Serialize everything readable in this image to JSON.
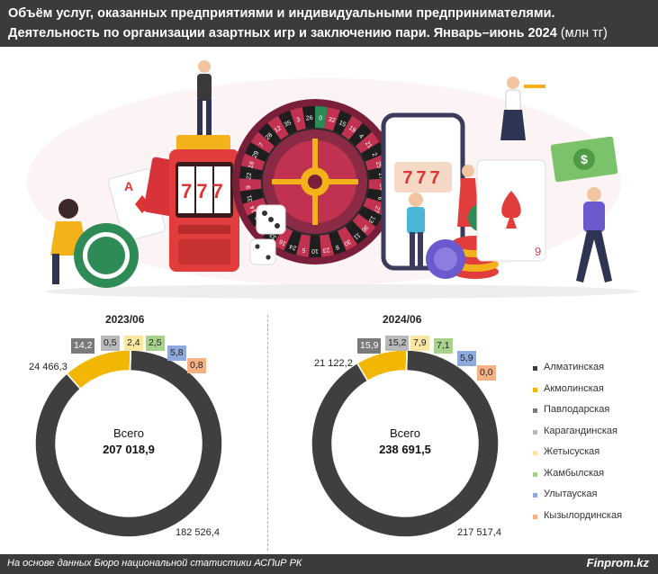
{
  "header": {
    "title_line1": "Объём услуг, оказанных предприятиями и индивидуальными предпринимателями.",
    "title_line2": "Деятельность по организации азартных игр и заключению пари. Январь–июнь 2024",
    "unit": "(млн тг)"
  },
  "illustration": {
    "slot_symbols": "777",
    "phone_symbols": "777",
    "roulette_numbers": [
      "0",
      "32",
      "15",
      "19",
      "4",
      "21",
      "2",
      "25",
      "17",
      "34",
      "6",
      "27",
      "13",
      "36",
      "11",
      "30",
      "8",
      "23",
      "10",
      "5",
      "24",
      "16",
      "33",
      "1",
      "20",
      "14",
      "31",
      "9",
      "22",
      "18",
      "29",
      "7",
      "28",
      "12",
      "35",
      "3",
      "26"
    ],
    "card_left_rank": "A",
    "card_right_rank": "9",
    "icons": [
      "roulette-wheel-icon",
      "slot-machine-icon",
      "smartphone-icon",
      "poker-chip-icon",
      "dice-icon",
      "playing-card-icon",
      "money-bill-icon"
    ]
  },
  "chart_data": [
    {
      "type": "pie",
      "title": "2023/06",
      "center_label": "Всего",
      "total_label": "207 018,9",
      "total": 207018.9,
      "categories": [
        "Алматинская",
        "Акмолинская",
        "Павлодарская",
        "Карагандинская",
        "Жетысуская",
        "Жамбылская",
        "Улытауская",
        "Кызылординская"
      ],
      "values": [
        182526.4,
        24466.3,
        14.2,
        0.5,
        2.4,
        2.5,
        5.8,
        0.8
      ],
      "labels": [
        "182 526,4",
        "24 466,3",
        "14,2",
        "0,5",
        "2,4",
        "2,5",
        "5,8",
        "0,8"
      ]
    },
    {
      "type": "pie",
      "title": "2024/06",
      "center_label": "Всего",
      "total_label": "238 691,5",
      "total": 238691.5,
      "categories": [
        "Алматинская",
        "Акмолинская",
        "Павлодарская",
        "Карагандинская",
        "Жетысуская",
        "Жамбылская",
        "Улытауская",
        "Кызылординская"
      ],
      "values": [
        217517.4,
        21122.2,
        15.9,
        15.2,
        7.9,
        7.1,
        5.9,
        0.0
      ],
      "labels": [
        "217 517,4",
        "21 122,2",
        "15,9",
        "15,2",
        "7,9",
        "7,1",
        "5,9",
        "0,0"
      ]
    }
  ],
  "legend": {
    "placement": "right",
    "items": [
      {
        "label": "Алматинская",
        "color": "#3f3f3f"
      },
      {
        "label": "Акмолинская",
        "color": "#f2b705"
      },
      {
        "label": "Павлодарская",
        "color": "#7a7a7a"
      },
      {
        "label": "Карагандинская",
        "color": "#b9b9b9"
      },
      {
        "label": "Жетысуская",
        "color": "#fbe7a1"
      },
      {
        "label": "Жамбылская",
        "color": "#a9d18e"
      },
      {
        "label": "Улытауская",
        "color": "#8ea9db"
      },
      {
        "label": "Кызылординская",
        "color": "#f4b183"
      }
    ]
  },
  "footer": {
    "source": "На основе данных Бюро национальной статистики АСПиР РК",
    "brand": "Finprom.kz"
  }
}
